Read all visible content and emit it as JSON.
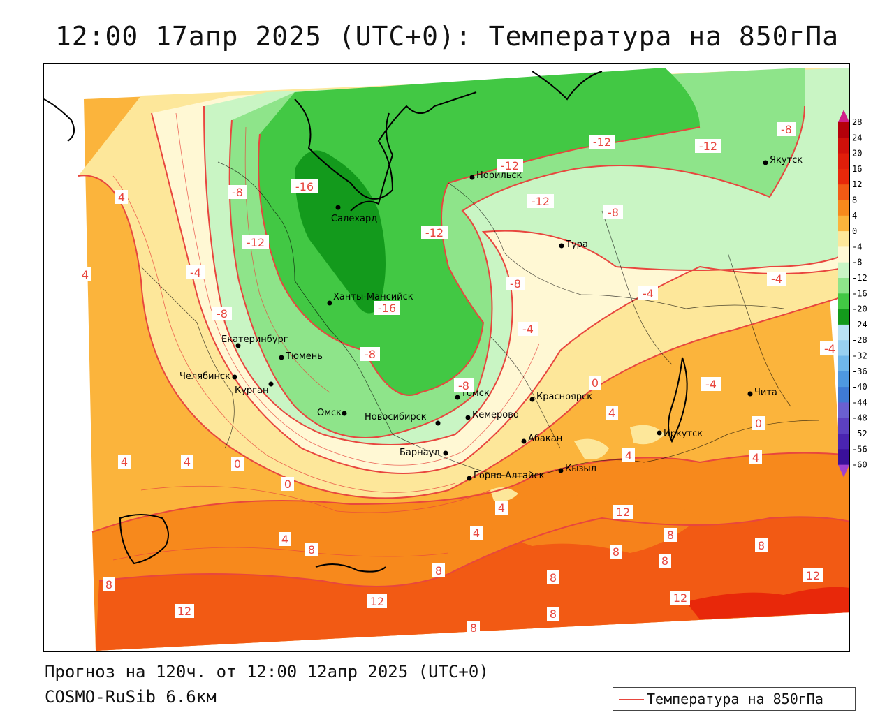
{
  "title": "12:00 17апр 2025 (UTC+0): Температура на 850гПа",
  "footer": {
    "forecast": "Прогноз на 120ч. от 12:00 12апр 2025 (UTC+0)",
    "model": "COSMO-RuSib 6.6км"
  },
  "legend": {
    "label": "Температура на 850гПа",
    "line_color": "#e8463e"
  },
  "colorbar": {
    "ticks": [
      "28",
      "24",
      "20",
      "16",
      "12",
      "8",
      "4",
      "0",
      "-4",
      "-8",
      "-12",
      "-16",
      "-20",
      "-24",
      "-28",
      "-32",
      "-36",
      "-40",
      "-44",
      "-48",
      "-52",
      "-56",
      "-60"
    ]
  },
  "cities": [
    {
      "name": "Салехард"
    },
    {
      "name": "Норильск"
    },
    {
      "name": "Якутск"
    },
    {
      "name": "Тура"
    },
    {
      "name": "Ханты-Мансийск"
    },
    {
      "name": "Екатеринбург"
    },
    {
      "name": "Тюмень"
    },
    {
      "name": "Челябинск"
    },
    {
      "name": "Курган"
    },
    {
      "name": "Омск"
    },
    {
      "name": "Новосибирск"
    },
    {
      "name": "Томск"
    },
    {
      "name": "Кемерово"
    },
    {
      "name": "Красноярск"
    },
    {
      "name": "Барнаул"
    },
    {
      "name": "Абакан"
    },
    {
      "name": "Горно-Алтайск"
    },
    {
      "name": "Кызыл"
    },
    {
      "name": "Иркутск"
    },
    {
      "name": "Чита"
    }
  ],
  "contour_labels": [
    "-16",
    "-16",
    "-12",
    "-12",
    "-12",
    "-12",
    "-12",
    "-12",
    "-8",
    "-8",
    "-8",
    "-8",
    "-8",
    "-8",
    "-8",
    "-4",
    "-4",
    "-4",
    "-4",
    "-4",
    "-4",
    "0",
    "0",
    "0",
    "0",
    "4",
    "4",
    "4",
    "4",
    "4",
    "4",
    "4",
    "4",
    "4",
    "4",
    "8",
    "8",
    "8",
    "8",
    "8",
    "8",
    "8",
    "8",
    "8",
    "8",
    "12",
    "12",
    "12",
    "12",
    "12"
  ],
  "colors": {
    "t_28": "#b5000a",
    "t_16": "#e8280a",
    "t_12": "#f25a14",
    "t_8": "#f7891c",
    "t_4": "#fbb43c",
    "t_0": "#fde79a",
    "t_m4": "#fff8d4",
    "t_m8": "#c9f5c4",
    "t_m12": "#8ee48a",
    "t_m16": "#42c844",
    "t_m20": "#139a1c",
    "contour": "#e8463e",
    "coast": "#000000"
  }
}
